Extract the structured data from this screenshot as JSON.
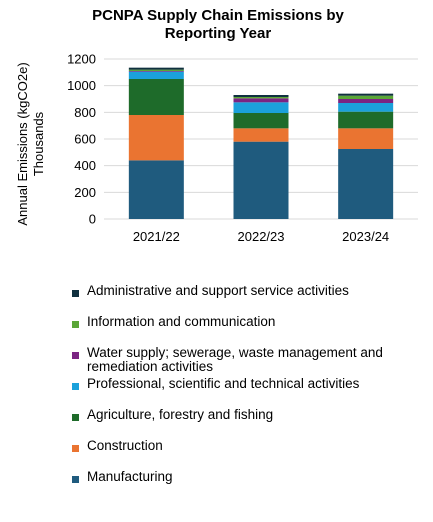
{
  "chart_data": {
    "type": "bar",
    "stacked": true,
    "title": [
      "PCNPA Supply Chain Emissions by",
      "Reporting Year"
    ],
    "ylabel": [
      "Annual Emissions (kgCO2e)",
      "Thousands"
    ],
    "xlabel": "",
    "categories": [
      "2021/22",
      "2022/23",
      "2023/24"
    ],
    "ylim": [
      0,
      1200
    ],
    "yticks": [
      0,
      200,
      400,
      600,
      800,
      1000,
      1200
    ],
    "grid": true,
    "legend_position": "bottom",
    "series": [
      {
        "name": "Manufacturing",
        "color": "#1f5b7e",
        "values": [
          440,
          580,
          525
        ]
      },
      {
        "name": "Construction",
        "color": "#ea7431",
        "values": [
          340,
          100,
          155
        ]
      },
      {
        "name": "Agriculture, forestry and fishing",
        "color": "#1e6b2a",
        "values": [
          270,
          115,
          125
        ]
      },
      {
        "name": "Professional, scientific and technical activities",
        "color": "#1ba1db",
        "values": [
          55,
          80,
          65
        ]
      },
      {
        "name": "Water supply; sewerage, waste management and remediation activities",
        "color": "#7b2482",
        "values": [
          5,
          30,
          30
        ]
      },
      {
        "name": "Information and communication",
        "color": "#5aa637",
        "values": [
          10,
          10,
          25
        ]
      },
      {
        "name": "Administrative and support service activities",
        "color": "#10303f",
        "values": [
          15,
          15,
          15
        ]
      }
    ]
  }
}
